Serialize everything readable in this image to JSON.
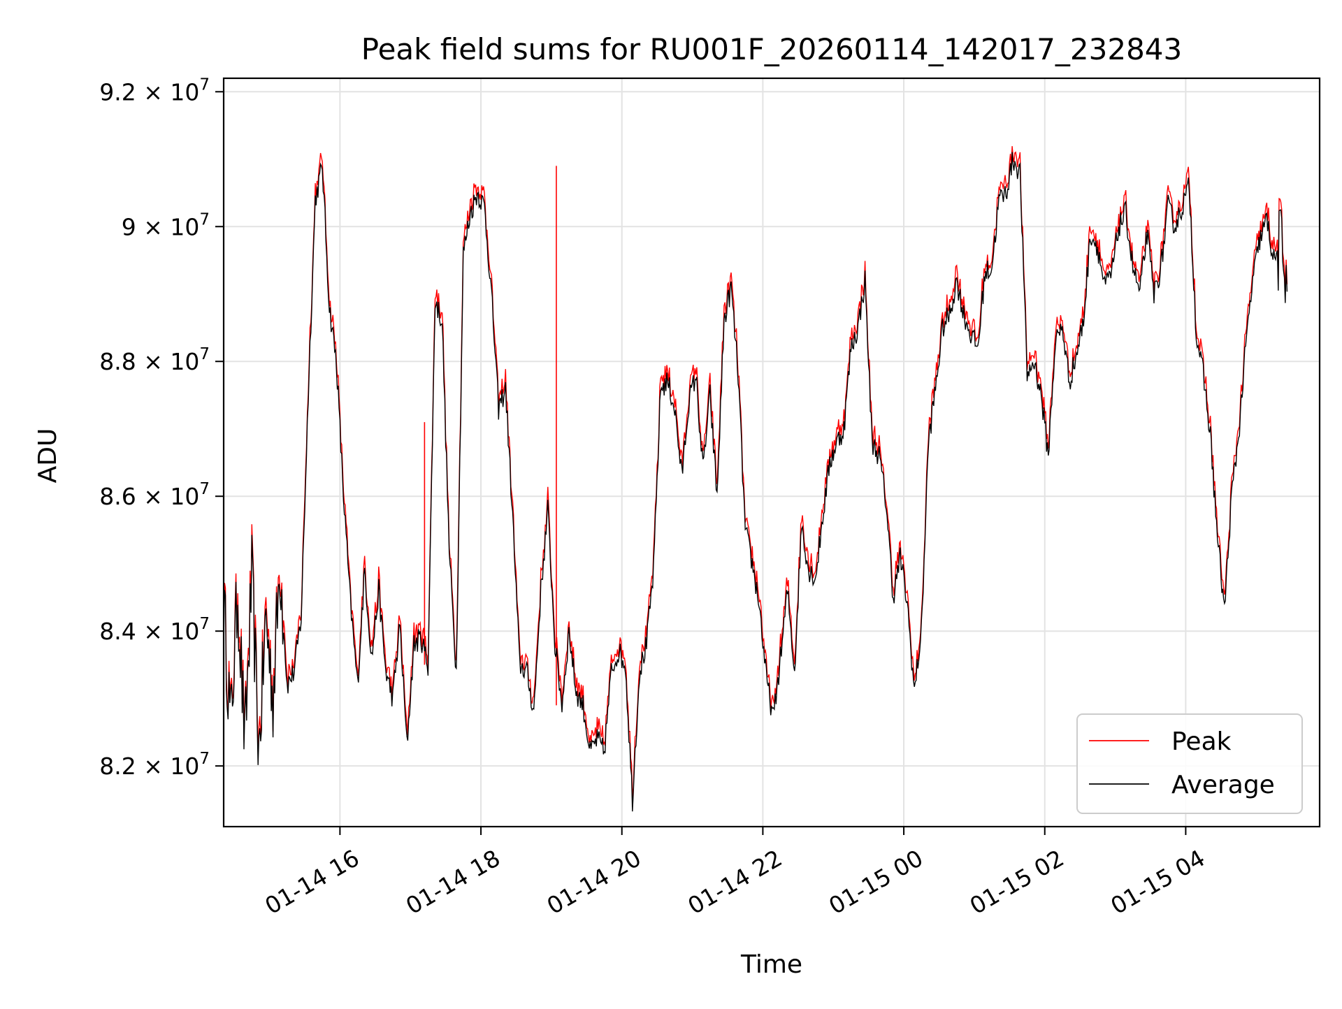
{
  "chart_data": {
    "type": "line",
    "title": "Peak field sums for RU001F_20260114_142017_232843",
    "xlabel": "Time",
    "ylabel": "ADU",
    "x_unit": "hours since 01-14 00:00",
    "xlim": [
      14.35,
      29.9
    ],
    "ylim": [
      81.1,
      92.2
    ],
    "y_scale": 1000000.0,
    "grid": true,
    "legend_position": "lower-right",
    "x_ticks": [
      {
        "value": 16,
        "label": "01-14 16"
      },
      {
        "value": 18,
        "label": "01-14 18"
      },
      {
        "value": 20,
        "label": "01-14 20"
      },
      {
        "value": 22,
        "label": "01-14 22"
      },
      {
        "value": 24,
        "label": "01-15 00"
      },
      {
        "value": 26,
        "label": "01-15 02"
      },
      {
        "value": 28,
        "label": "01-15 04"
      }
    ],
    "y_ticks": [
      {
        "value": 82,
        "mantissa": "8.2",
        "exp": "7"
      },
      {
        "value": 84,
        "mantissa": "8.4",
        "exp": "7"
      },
      {
        "value": 86,
        "mantissa": "8.6",
        "exp": "7"
      },
      {
        "value": 88,
        "mantissa": "8.8",
        "exp": "7"
      },
      {
        "value": 90,
        "mantissa": "9",
        "exp": "7"
      },
      {
        "value": 92,
        "mantissa": "9.2",
        "exp": "7"
      }
    ],
    "series": [
      {
        "name": "Peak",
        "color": "#ff0000"
      },
      {
        "name": "Average",
        "color": "#000000"
      }
    ],
    "x": [
      14.35,
      14.45,
      14.55,
      14.65,
      14.75,
      14.85,
      14.95,
      15.05,
      15.15,
      15.25,
      15.35,
      15.45,
      15.55,
      15.65,
      15.75,
      15.85,
      15.95,
      16.05,
      16.15,
      16.25,
      16.35,
      16.45,
      16.55,
      16.65,
      16.75,
      16.85,
      16.95,
      17.05,
      17.15,
      17.25,
      17.35,
      17.45,
      17.55,
      17.65,
      17.75,
      17.85,
      17.95,
      18.05,
      18.15,
      18.25,
      18.35,
      18.45,
      18.55,
      18.65,
      18.75,
      18.85,
      18.95,
      19.05,
      19.15,
      19.25,
      19.35,
      19.45,
      19.55,
      19.65,
      19.75,
      19.85,
      19.95,
      20.05,
      20.15,
      20.25,
      20.35,
      20.45,
      20.55,
      20.65,
      20.75,
      20.85,
      20.95,
      21.05,
      21.15,
      21.25,
      21.35,
      21.45,
      21.55,
      21.65,
      21.75,
      21.85,
      21.95,
      22.05,
      22.15,
      22.25,
      22.35,
      22.45,
      22.55,
      22.65,
      22.75,
      22.85,
      22.95,
      23.05,
      23.15,
      23.25,
      23.35,
      23.45,
      23.55,
      23.65,
      23.75,
      23.85,
      23.95,
      24.05,
      24.15,
      24.25,
      24.35,
      24.45,
      24.55,
      24.65,
      24.75,
      24.85,
      24.95,
      25.05,
      25.15,
      25.25,
      25.35,
      25.45,
      25.55,
      25.65,
      25.75,
      25.85,
      25.95,
      26.05,
      26.15,
      26.25,
      26.35,
      26.45,
      26.55,
      26.65,
      26.75,
      26.85,
      26.95,
      27.05,
      27.15,
      27.25,
      27.35,
      27.45,
      27.55,
      27.65,
      27.75,
      27.85,
      27.95,
      28.05,
      28.15,
      28.25,
      28.35,
      28.45,
      28.55,
      28.65,
      28.75,
      28.85,
      28.95,
      29.05,
      29.15,
      29.25,
      29.35,
      29.45,
      29.55,
      29.65,
      29.75,
      29.85
    ],
    "average": [
      84.4,
      82.6,
      84.6,
      82.3,
      84.8,
      82.2,
      84.2,
      83.0,
      85.0,
      83.2,
      83.4,
      84.2,
      87.5,
      90.4,
      90.9,
      88.8,
      88.0,
      86.0,
      84.4,
      83.2,
      84.9,
      83.6,
      84.6,
      83.4,
      83.0,
      84.1,
      82.3,
      83.8,
      83.9,
      83.5,
      88.9,
      88.6,
      85.2,
      83.4,
      89.6,
      90.2,
      90.5,
      90.3,
      89.0,
      87.3,
      87.6,
      85.7,
      83.5,
      83.4,
      82.8,
      84.6,
      85.8,
      83.8,
      82.9,
      84.0,
      83.1,
      82.9,
      82.2,
      82.4,
      82.2,
      83.4,
      83.7,
      83.5,
      81.5,
      83.4,
      83.8,
      84.9,
      87.6,
      87.7,
      87.3,
      86.3,
      87.4,
      87.8,
      86.4,
      87.5,
      86.0,
      88.6,
      89.1,
      87.8,
      85.5,
      85.0,
      84.4,
      83.3,
      82.7,
      83.6,
      84.6,
      83.4,
      85.6,
      84.9,
      84.8,
      85.7,
      86.5,
      86.8,
      87.0,
      88.2,
      88.5,
      89.2,
      86.8,
      86.6,
      85.9,
      84.5,
      85.1,
      84.4,
      83.1,
      84.0,
      86.8,
      87.6,
      88.5,
      88.7,
      89.2,
      88.7,
      88.4,
      88.2,
      89.3,
      89.4,
      90.4,
      90.5,
      91.0,
      90.8,
      87.8,
      88.0,
      87.5,
      86.6,
      88.3,
      88.5,
      87.7,
      88.1,
      88.6,
      89.9,
      89.7,
      89.1,
      89.3,
      90.0,
      90.2,
      89.4,
      89.0,
      89.9,
      89.0,
      89.4,
      90.3,
      90.0,
      90.3,
      90.6,
      88.4,
      87.8,
      86.9,
      85.4,
      84.3,
      86.0,
      86.9,
      88.2,
      89.2,
      89.8,
      90.1,
      89.5,
      89.7,
      89.3
    ],
    "spikes": [
      {
        "x": 17.2,
        "value": 87.1
      },
      {
        "x": 19.07,
        "value": 90.9
      }
    ]
  }
}
